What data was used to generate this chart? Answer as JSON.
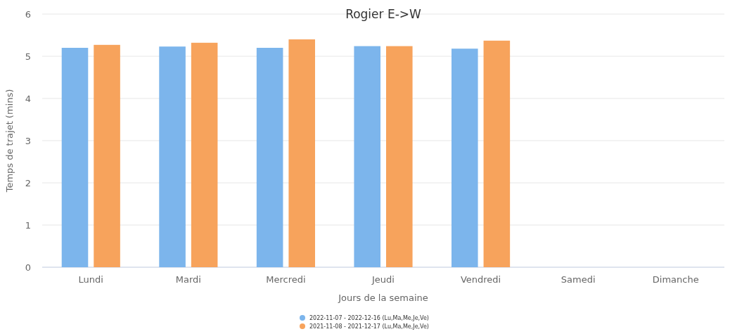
{
  "chart_data": {
    "type": "bar",
    "title": "Rogier E->W",
    "xlabel": "Jours de la semaine",
    "ylabel": "Temps de trajet (mins)",
    "categories": [
      "Lundi",
      "Mardi",
      "Mercredi",
      "Jeudi",
      "Vendredi",
      "Samedi",
      "Dimanche"
    ],
    "series": [
      {
        "name": "2022-11-07 - 2022-12-16 (Lu,Ma,Me,Je,Ve)",
        "color": "#7cb5ec",
        "values": [
          5.2,
          5.23,
          5.2,
          5.24,
          5.18,
          null,
          null
        ]
      },
      {
        "name": "2021-11-08 - 2021-12-17 (Lu,Ma,Me,Je,Ve)",
        "color": "#f7a35c",
        "values": [
          5.27,
          5.32,
          5.4,
          5.24,
          5.37,
          null,
          null
        ]
      }
    ],
    "ylim": [
      0,
      6
    ],
    "yticks": [
      0,
      1,
      2,
      3,
      4,
      5,
      6
    ],
    "grid": "y",
    "legend": "bottom"
  }
}
